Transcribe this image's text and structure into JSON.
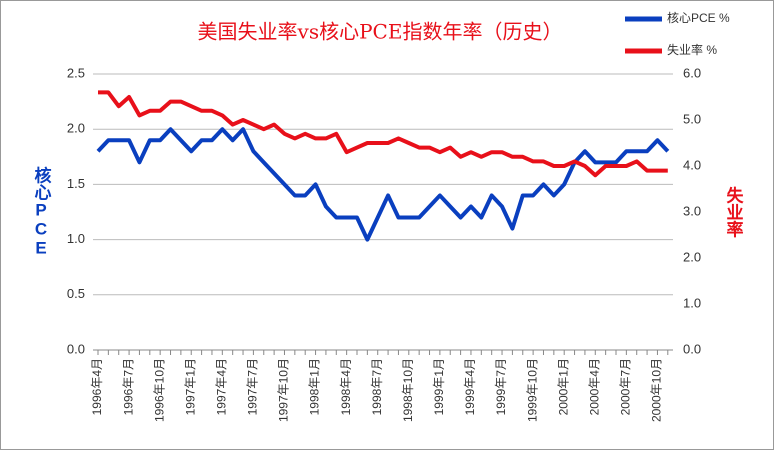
{
  "chart_data": {
    "type": "line",
    "title": "美国失业率vs核心PCE指数年率（历史）",
    "y_label": "核心PCE",
    "y2_label": "失业率",
    "categories": [
      "1996年4月",
      null,
      null,
      "1996年7月",
      null,
      null,
      "1996年10月",
      null,
      null,
      "1997年1月",
      null,
      null,
      "1997年4月",
      null,
      null,
      "1997年7月",
      null,
      null,
      "1997年10月",
      null,
      null,
      "1998年1月",
      null,
      null,
      "1998年4月",
      null,
      null,
      "1998年7月",
      null,
      null,
      "1998年10月",
      null,
      null,
      "1999年1月",
      null,
      null,
      "1999年4月",
      null,
      null,
      "1999年7月",
      null,
      null,
      "1999年10月",
      null,
      null,
      "2000年1月",
      null,
      null,
      "2000年4月",
      null,
      null,
      "2000年7月",
      null,
      null,
      "2000年10月",
      null
    ],
    "series": [
      {
        "name": "核心PCE %",
        "color": "#0a3fbf",
        "axis": "y",
        "values": [
          1.8,
          1.9,
          1.9,
          1.9,
          1.7,
          1.9,
          1.9,
          2.0,
          1.9,
          1.8,
          1.9,
          1.9,
          2.0,
          1.9,
          2.0,
          1.8,
          1.7,
          1.6,
          1.5,
          1.4,
          1.4,
          1.5,
          1.3,
          1.2,
          1.2,
          1.2,
          1.0,
          1.2,
          1.4,
          1.2,
          1.2,
          1.2,
          1.3,
          1.4,
          1.3,
          1.2,
          1.3,
          1.2,
          1.4,
          1.3,
          1.1,
          1.4,
          1.4,
          1.5,
          1.4,
          1.5,
          1.7,
          1.8,
          1.7,
          1.7,
          1.7,
          1.8,
          1.8,
          1.8,
          1.9,
          1.8
        ]
      },
      {
        "name": "失业率 %",
        "color": "#e8101a",
        "axis": "y2",
        "values": [
          5.6,
          5.6,
          5.3,
          5.5,
          5.1,
          5.2,
          5.2,
          5.4,
          5.4,
          5.3,
          5.2,
          5.2,
          5.1,
          4.9,
          5.0,
          4.9,
          4.8,
          4.9,
          4.7,
          4.6,
          4.7,
          4.6,
          4.6,
          4.7,
          4.3,
          4.4,
          4.5,
          4.5,
          4.5,
          4.6,
          4.5,
          4.4,
          4.4,
          4.3,
          4.4,
          4.2,
          4.3,
          4.2,
          4.3,
          4.3,
          4.2,
          4.2,
          4.1,
          4.1,
          4.0,
          4.0,
          4.1,
          4.0,
          3.8,
          4.0,
          4.0,
          4.0,
          4.1,
          3.9,
          3.9,
          3.9
        ]
      }
    ],
    "ylim": [
      0,
      2.5
    ],
    "yticks": [
      {
        "value": 0,
        "label": "0.0"
      },
      0.5,
      {
        "value": 1,
        "label": "1.0"
      },
      1.5,
      {
        "value": 2,
        "label": "2.0"
      },
      2.5
    ],
    "y2lim": [
      0,
      6
    ],
    "y2ticks": [
      {
        "value": 0,
        "label": "0.0"
      },
      {
        "value": 1,
        "label": "1.0"
      },
      {
        "value": 2,
        "label": "2.0"
      },
      {
        "value": 3,
        "label": "3.0"
      },
      {
        "value": 4,
        "label": "4.0"
      },
      {
        "value": 5,
        "label": "5.0"
      },
      {
        "value": 6,
        "label": "6.0"
      }
    ],
    "grid": true,
    "legend": "top-right"
  }
}
